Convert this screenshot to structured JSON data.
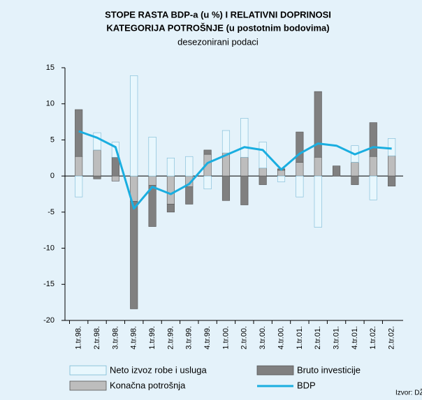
{
  "chart_data": {
    "type": "bar",
    "stacked": true,
    "title": [
      "STOPE RASTA BDP-a (u %) I RELATIVNI DOPRINOSI",
      "KATEGORIJA POTROŠNJE (u postotnim bodovima)"
    ],
    "subtitle": "desezonirani podaci",
    "source": "Izvor: DŽ",
    "categories": [
      "1.tr.98.",
      "2.tr.98.",
      "3.tr.98.",
      "4.tr.98.",
      "1.tr.99.",
      "2.tr.99.",
      "3.tr.99.",
      "4.tr.99.",
      "1.tr.00.",
      "2.tr.00.",
      "3.tr.00.",
      "4.tr.00.",
      "1.tr.01.",
      "2.tr.01.",
      "3.tr.01.",
      "4.tr.01.",
      "1.tr.02.",
      "2.tr.02."
    ],
    "series": [
      {
        "name": "Konačna potrošnja",
        "type": "bar",
        "color": "#bdbdbd",
        "values": [
          2.7,
          3.6,
          -0.7,
          -3.5,
          -1.3,
          -3.9,
          -1.5,
          3.0,
          3.2,
          2.6,
          1.1,
          0.8,
          1.9,
          2.6,
          0,
          1.9,
          2.7,
          2.8
        ]
      },
      {
        "name": "Bruto investicije",
        "type": "bar",
        "color": "#808080",
        "values": [
          6.5,
          -0.4,
          2.6,
          -14.9,
          -5.7,
          -1.1,
          -2.4,
          0.6,
          -3.4,
          -4.0,
          -1.2,
          0.2,
          4.2,
          9.1,
          1.4,
          -1.2,
          4.7,
          -1.4
        ]
      },
      {
        "name": "Neto izvoz robe i usluga",
        "type": "bar",
        "color": "#e8f7fd",
        "values": [
          -2.9,
          2.4,
          2.1,
          13.9,
          5.4,
          2.5,
          2.7,
          -1.8,
          3.1,
          5.4,
          3.6,
          -0.8,
          -2.9,
          -7.1,
          0,
          2.3,
          -3.3,
          2.4
        ]
      },
      {
        "name": "BDP",
        "type": "line",
        "color": "#1aaee0",
        "values": [
          6.2,
          5.3,
          4.0,
          -4.5,
          -1.5,
          -2.5,
          -1.1,
          1.8,
          2.9,
          4.0,
          3.6,
          0.9,
          3.1,
          4.5,
          4.2,
          3.0,
          4.0,
          3.8
        ]
      }
    ],
    "ylim": [
      -20,
      15
    ],
    "yticks": [
      15,
      10,
      5,
      0,
      -5,
      -10,
      -15,
      -20
    ]
  }
}
